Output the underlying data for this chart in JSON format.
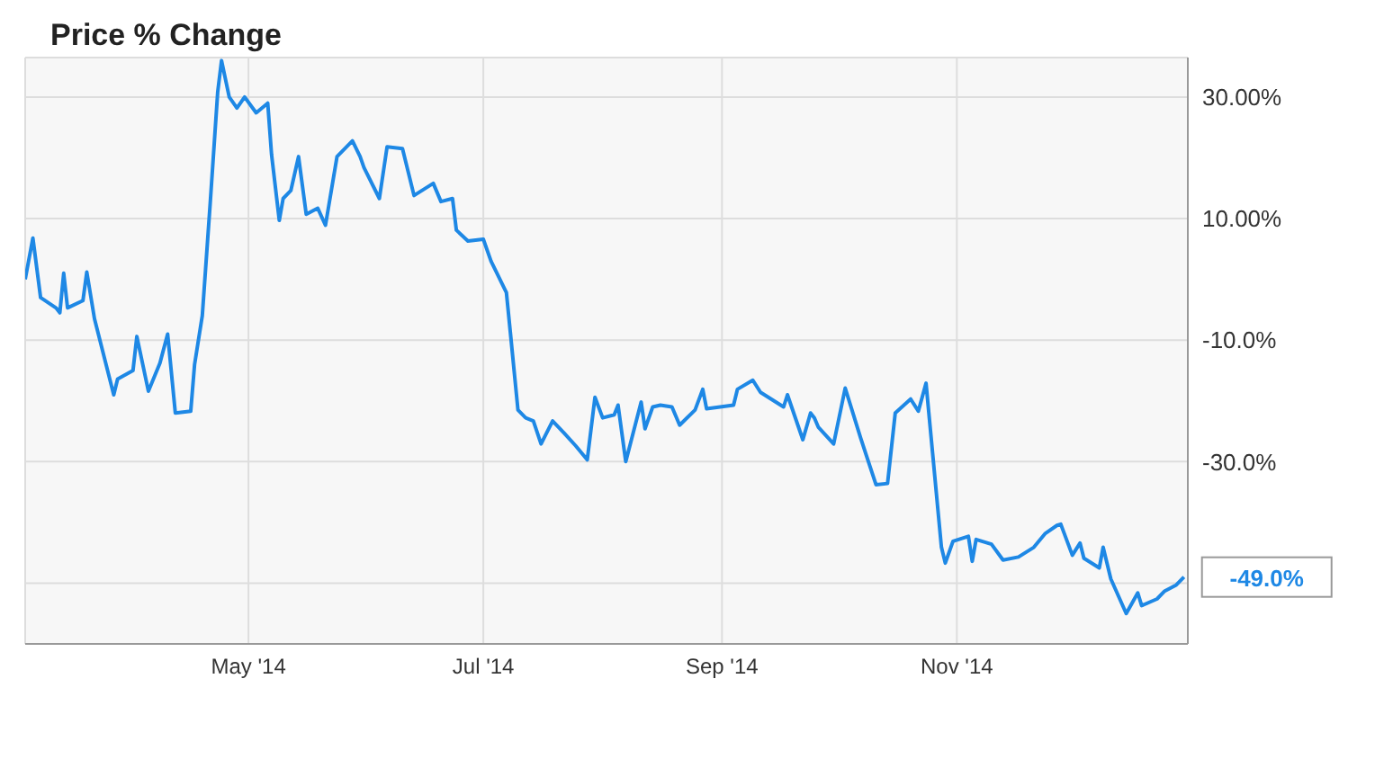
{
  "chart_data": {
    "type": "line",
    "title": "Price % Change",
    "x": [
      "2014-03-04",
      "2014-03-06",
      "2014-03-08",
      "2014-03-12",
      "2014-03-13",
      "2014-03-14",
      "2014-03-15",
      "2014-03-19",
      "2014-03-20",
      "2014-03-22",
      "2014-03-27",
      "2014-03-28",
      "2014-04-01",
      "2014-04-02",
      "2014-04-05",
      "2014-04-08",
      "2014-04-10",
      "2014-04-12",
      "2014-04-16",
      "2014-04-17",
      "2014-04-19",
      "2014-04-21",
      "2014-04-23",
      "2014-04-24",
      "2014-04-26",
      "2014-04-28",
      "2014-04-30",
      "2014-05-03",
      "2014-05-06",
      "2014-05-07",
      "2014-05-09",
      "2014-05-10",
      "2014-05-12",
      "2014-05-14",
      "2014-05-16",
      "2014-05-19",
      "2014-05-21",
      "2014-05-24",
      "2014-05-28",
      "2014-05-30",
      "2014-05-31",
      "2014-06-04",
      "2014-06-06",
      "2014-06-10",
      "2014-06-13",
      "2014-06-18",
      "2014-06-20",
      "2014-06-23",
      "2014-06-24",
      "2014-06-27",
      "2014-07-01",
      "2014-07-03",
      "2014-07-07",
      "2014-07-08",
      "2014-07-10",
      "2014-07-12",
      "2014-07-14",
      "2014-07-16",
      "2014-07-19",
      "2014-07-22",
      "2014-07-25",
      "2014-07-28",
      "2014-07-30",
      "2014-08-01",
      "2014-08-04",
      "2014-08-05",
      "2014-08-07",
      "2014-08-11",
      "2014-08-12",
      "2014-08-14",
      "2014-08-16",
      "2014-08-19",
      "2014-08-21",
      "2014-08-25",
      "2014-08-27",
      "2014-08-28",
      "2014-09-04",
      "2014-09-05",
      "2014-09-09",
      "2014-09-11",
      "2014-09-17",
      "2014-09-18",
      "2014-09-22",
      "2014-09-24",
      "2014-09-25",
      "2014-09-26",
      "2014-09-30",
      "2014-10-03",
      "2014-10-07",
      "2014-10-11",
      "2014-10-14",
      "2014-10-16",
      "2014-10-20",
      "2014-10-22",
      "2014-10-24",
      "2014-10-28",
      "2014-10-29",
      "2014-10-31",
      "2014-11-04",
      "2014-11-05",
      "2014-11-06",
      "2014-11-10",
      "2014-11-13",
      "2014-11-17",
      "2014-11-21",
      "2014-11-24",
      "2014-11-27",
      "2014-11-28",
      "2014-12-01",
      "2014-12-03",
      "2014-12-04",
      "2014-12-08",
      "2014-12-09",
      "2014-12-11",
      "2014-12-15",
      "2014-12-18",
      "2014-12-19",
      "2014-12-23",
      "2014-12-25",
      "2014-12-28",
      "2014-12-30"
    ],
    "series": [
      {
        "color": "#1e88e5",
        "values": [
          0,
          6.8,
          -3,
          -4.7,
          -5.5,
          1,
          -4.7,
          -3.5,
          1.2,
          -6.5,
          -19,
          -16.4,
          -15,
          -9.4,
          -18.4,
          -13.8,
          -9,
          -22,
          -21.7,
          -14,
          -6,
          12,
          30.8,
          36,
          30,
          28.2,
          30,
          27.4,
          29,
          20.5,
          9.7,
          13.3,
          14.6,
          20.2,
          10.7,
          11.7,
          8.9,
          20.2,
          22.8,
          20.2,
          18.4,
          13.3,
          21.8,
          21.5,
          13.8,
          15.8,
          12.8,
          13.3,
          8.1,
          6.3,
          6.6,
          3,
          -2.2,
          -8.6,
          -21.5,
          -22.8,
          -23.3,
          -27.1,
          -23.3,
          -25.3,
          -27.4,
          -29.7,
          -19.4,
          -22.8,
          -22.3,
          -20.7,
          -30,
          -20.2,
          -24.6,
          -21,
          -20.7,
          -21,
          -24,
          -21.5,
          -18.1,
          -21.3,
          -20.7,
          -18.1,
          -16.6,
          -18.6,
          -21,
          -19,
          -26.4,
          -22,
          -22.8,
          -24.3,
          -27.1,
          -17.9,
          -26.1,
          -33.8,
          -33.6,
          -22,
          -19.7,
          -21.7,
          -17.1,
          -44.1,
          -46.7,
          -43.1,
          -42.3,
          -46.4,
          -42.8,
          -43.6,
          -46.2,
          -45.7,
          -44.1,
          -41.8,
          -40.5,
          -40.3,
          -45.4,
          -43.4,
          -45.9,
          -47.5,
          -44.1,
          -49.3,
          -55,
          -51.6,
          -53.7,
          -52.6,
          -51.3,
          -50.3,
          -49
        ]
      }
    ],
    "xlim": [
      "2014-03-04",
      "2014-12-31"
    ],
    "xticks": [
      {
        "value": "2014-05-01",
        "label": "May '14"
      },
      {
        "value": "2014-07-01",
        "label": "Jul '14"
      },
      {
        "value": "2014-09-01",
        "label": "Sep '14"
      },
      {
        "value": "2014-11-01",
        "label": "Nov '14"
      }
    ],
    "ylim": [
      -60,
      36.5
    ],
    "yticks": [
      {
        "value": -50,
        "label": null
      },
      {
        "value": -30,
        "label": "-30.0%"
      },
      {
        "value": -10,
        "label": "-10.0%"
      },
      {
        "value": 10,
        "label": "10.00%"
      },
      {
        "value": 30,
        "label": "30.00%"
      }
    ],
    "grid": true,
    "marker": "none",
    "line_style": "solid",
    "annotations": [
      {
        "text": "-49.0%",
        "x": "2014-12-30",
        "y": -49
      }
    ]
  }
}
